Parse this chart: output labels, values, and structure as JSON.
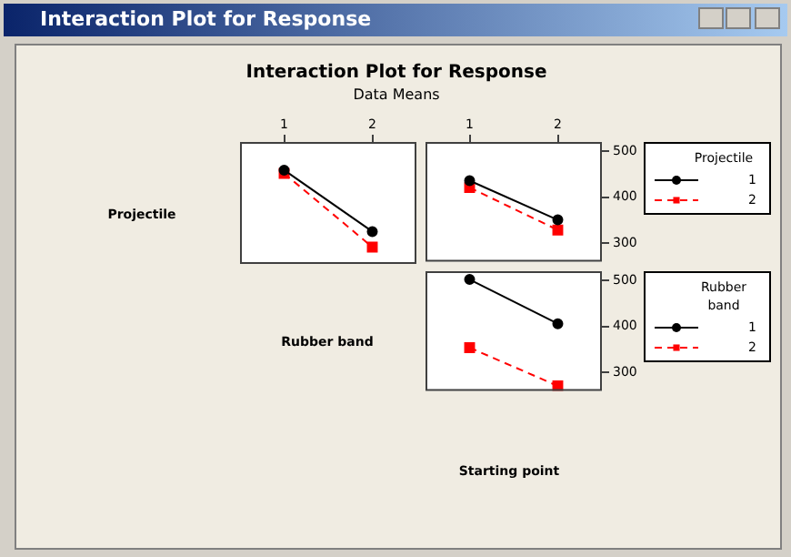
{
  "chart_data": [
    {
      "type": "line",
      "title": "Interaction Plot for Response",
      "subtitle": "Data Means",
      "ylabel": "Projectile",
      "xlabel": "Rubber band",
      "categories": [
        "1",
        "2"
      ],
      "ylim": [
        260,
        520
      ],
      "yticks": [
        300,
        400,
        500
      ],
      "tick_labels": "x",
      "grid": false,
      "legend": false,
      "series": [
        {
          "color": "#000000",
          "values": [
            460,
            329
          ],
          "marker": "circle",
          "line_style": "solid"
        },
        {
          "color": "#ff0000",
          "values": [
            453,
            296
          ],
          "marker": "square",
          "line_style": "dashed"
        }
      ]
    },
    {
      "type": "line",
      "xlabel": "Starting point",
      "legend_title": "Projectile",
      "categories": [
        "1",
        "2"
      ],
      "ylim": [
        260,
        520
      ],
      "yticks": [
        300,
        400,
        500
      ],
      "grid": false,
      "legend": "right",
      "series": [
        {
          "name": "1",
          "color": "#000000",
          "values": [
            436,
            351
          ],
          "marker": "circle",
          "line_style": "solid"
        },
        {
          "name": "2",
          "color": "#ff0000",
          "values": [
            421,
            329
          ],
          "marker": "square",
          "line_style": "dashed"
        }
      ]
    },
    {
      "type": "line",
      "legend_title": "Rubber band",
      "categories": [
        null,
        null
      ],
      "ylim": [
        260,
        520
      ],
      "yticks": [
        300,
        400,
        500
      ],
      "tick_labels": "y",
      "grid": false,
      "legend": "right",
      "series": [
        {
          "name": "1",
          "color": "#000000",
          "values": [
            502,
            406
          ],
          "marker": "circle",
          "line_style": "solid"
        },
        {
          "name": "2",
          "color": "#ff0000",
          "values": [
            354,
            271
          ],
          "marker": "square",
          "line_style": "dashed"
        }
      ]
    }
  ]
}
